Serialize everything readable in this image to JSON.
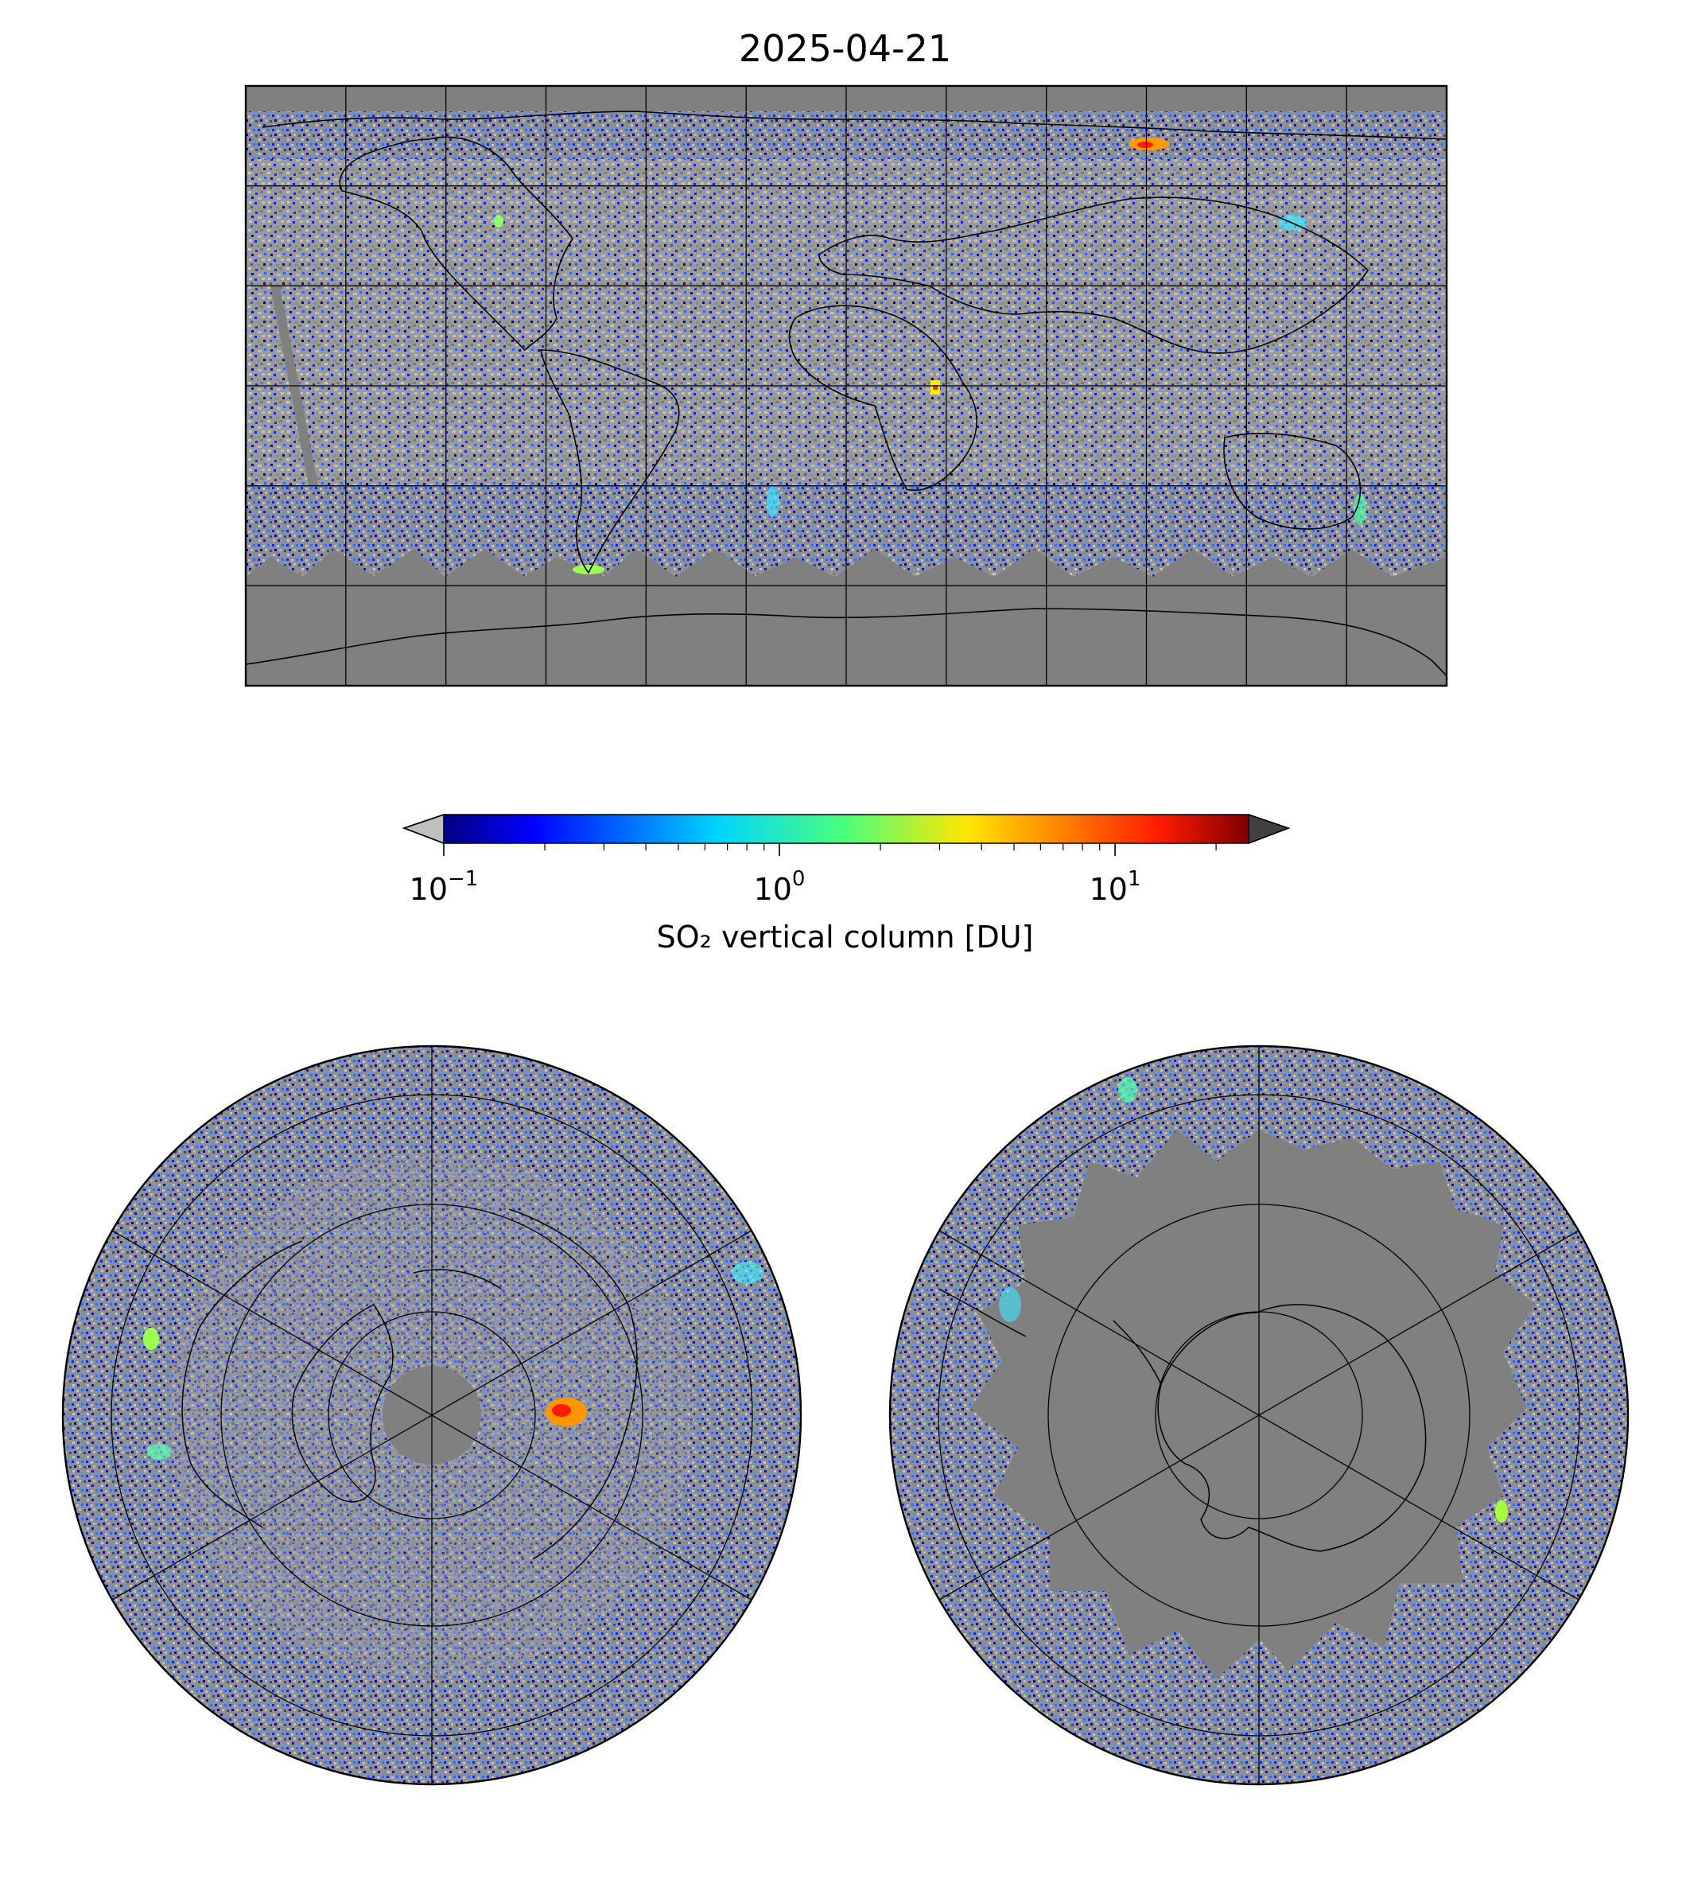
{
  "figure": {
    "title": "2025-04-21"
  },
  "colorbar": {
    "label": "SO₂ vertical column [DU]",
    "scale": "log",
    "colormap": "jet",
    "range": [
      0.1,
      25
    ],
    "ticks": [
      {
        "value": 0.1,
        "base": "10",
        "exponent": "−1"
      },
      {
        "value": 1,
        "base": "10",
        "exponent": "0"
      },
      {
        "value": 10,
        "base": "10",
        "exponent": "1"
      }
    ],
    "under_color": "#c0c0c0",
    "over_color": "#404040",
    "no_data_color": "#808080"
  },
  "panels": [
    {
      "name": "global-map",
      "projection": "plate-carree",
      "graticule": "30 degrees"
    },
    {
      "name": "north-polar-map",
      "projection": "north-polar-stereographic"
    },
    {
      "name": "south-polar-map",
      "projection": "south-polar-stereographic"
    }
  ]
}
